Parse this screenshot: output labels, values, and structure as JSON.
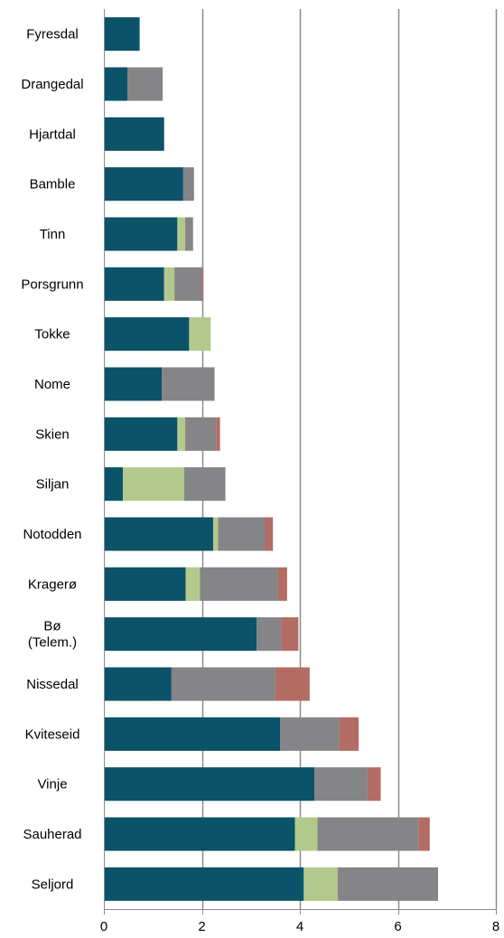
{
  "chart_data": {
    "type": "bar",
    "orientation": "horizontal",
    "stacked": true,
    "title": "",
    "xlabel": "",
    "ylabel": "",
    "xlim": [
      0,
      8
    ],
    "xticks": [
      0,
      2,
      4,
      6,
      8
    ],
    "grid": "vertical",
    "legend": "none",
    "categories": [
      [
        "Fyresdal"
      ],
      [
        "Drangedal"
      ],
      [
        "Hjartdal"
      ],
      [
        "Bamble"
      ],
      [
        "Tinn"
      ],
      [
        "Porsgrunn"
      ],
      [
        "Tokke"
      ],
      [
        "Nome"
      ],
      [
        "Skien"
      ],
      [
        "Siljan"
      ],
      [
        "Notodden"
      ],
      [
        "Kragerø"
      ],
      [
        "Bø",
        "(Telem.)"
      ],
      [
        "Nissedal"
      ],
      [
        "Kviteseid"
      ],
      [
        "Vinje"
      ],
      [
        "Sauherad"
      ],
      [
        "Seljord"
      ]
    ],
    "series": [
      {
        "color": "#0b5369",
        "values": [
          0.73,
          0.48,
          1.23,
          1.62,
          1.5,
          1.23,
          1.74,
          1.18,
          1.5,
          0.39,
          2.23,
          1.67,
          3.12,
          1.38,
          3.6,
          4.3,
          3.9,
          4.08
        ]
      },
      {
        "color": "#b3c98c",
        "values": [
          0,
          0,
          0,
          0,
          0.16,
          0.21,
          0.44,
          0,
          0.16,
          1.25,
          0.1,
          0.29,
          0,
          0,
          0,
          0,
          0.46,
          0.69
        ]
      },
      {
        "color": "#858588",
        "values": [
          0,
          0.72,
          0,
          0.22,
          0.16,
          0.56,
          0,
          1.08,
          0.63,
          0.84,
          0.96,
          1.59,
          0.5,
          2.12,
          1.2,
          1.08,
          2.06,
          2.05
        ]
      },
      {
        "color": "#b26c64",
        "values": [
          0,
          0,
          0,
          0,
          0,
          0.03,
          0,
          0,
          0.08,
          0,
          0.16,
          0.19,
          0.35,
          0.7,
          0.4,
          0.27,
          0.23,
          0
        ]
      }
    ]
  }
}
